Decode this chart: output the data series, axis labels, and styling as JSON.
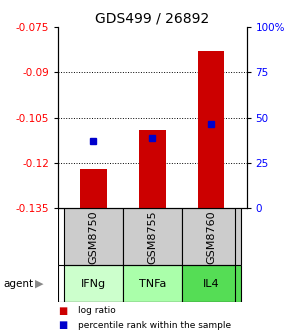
{
  "title": "GDS499 / 26892",
  "samples": [
    "GSM8750",
    "GSM8755",
    "GSM8760"
  ],
  "agents": [
    "IFNg",
    "TNFa",
    "IL4"
  ],
  "log_ratios": [
    -0.122,
    -0.109,
    -0.083
  ],
  "log_ratio_base": -0.135,
  "percentile_ranks": [
    0.37,
    0.385,
    0.465
  ],
  "ylim_left": [
    -0.135,
    -0.075
  ],
  "yticks_left": [
    -0.135,
    -0.12,
    -0.105,
    -0.09,
    -0.075
  ],
  "yticks_right": [
    0,
    25,
    50,
    75,
    100
  ],
  "bar_color": "#cc0000",
  "dot_color": "#0000cc",
  "agent_colors": [
    "#ccffcc",
    "#aaffaa",
    "#55dd55"
  ],
  "sample_bg": "#cccccc",
  "bar_width": 0.45,
  "tick_fontsize": 7.5,
  "title_fontsize": 10,
  "label_fontsize": 8
}
